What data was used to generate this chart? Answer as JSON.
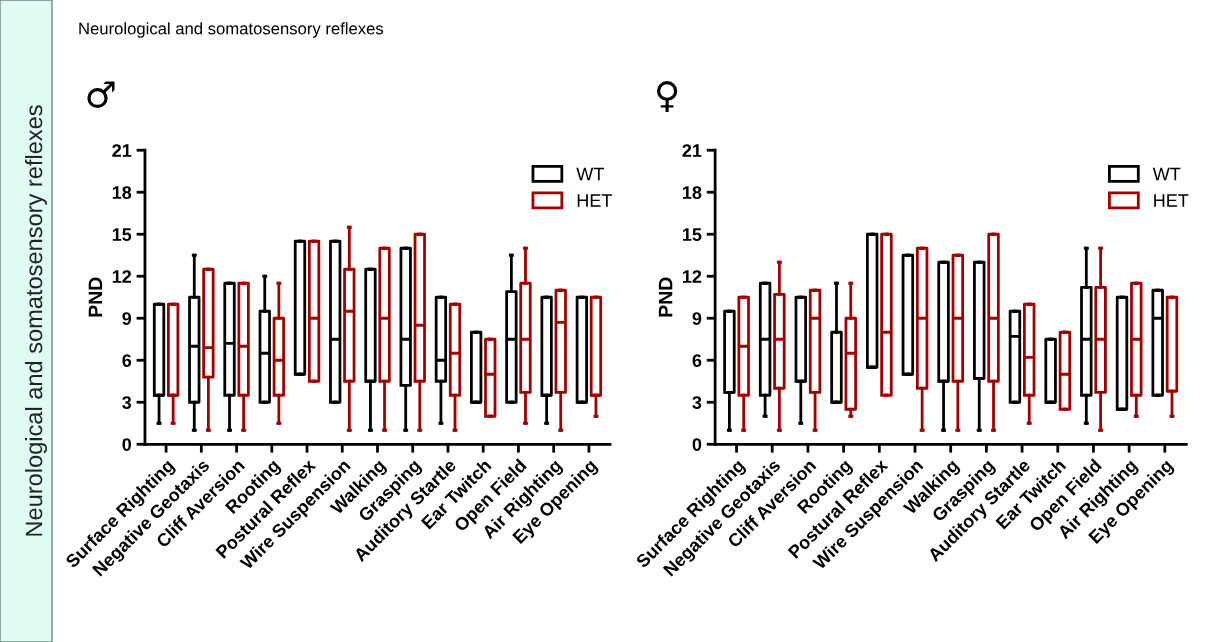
{
  "chart_data": [
    {
      "type": "box",
      "title": "♂",
      "ylabel": "PND",
      "ylim": [
        0,
        21
      ],
      "yticks": [
        0,
        3,
        6,
        9,
        12,
        15,
        18,
        21
      ],
      "grid": false,
      "legend": "top right",
      "annotations": [
        "Neurological and somatosensory reflexes",
        "Neurological and somatosensory reflexes"
      ],
      "categories": [
        "Surface Righting",
        "Negative Geotaxis",
        "Cliff Aversion",
        "Rooting",
        "Postural Reflex",
        "Wire Suspension",
        "Walking",
        "Grasping",
        "Auditory Startle",
        "Ear Twitch",
        "Open Field",
        "Air Righting",
        "Eye Opening"
      ],
      "series": [
        {
          "name": "WT",
          "color": "#000000",
          "boxes": [
            {
              "low": 1.5,
              "q1": 3.5,
              "median": 3.5,
              "q3": 10,
              "high": 10
            },
            {
              "low": 1,
              "q1": 3,
              "median": 7,
              "q3": 10.5,
              "high": 13.5
            },
            {
              "low": 1,
              "q1": 3.5,
              "median": 7.2,
              "q3": 11.5,
              "high": 11.5
            },
            {
              "low": 3,
              "q1": 3,
              "median": 6.5,
              "q3": 9.5,
              "high": 12
            },
            {
              "low": 5,
              "q1": 5,
              "median": 5,
              "q3": 14.5,
              "high": 14.5
            },
            {
              "low": 3,
              "q1": 3,
              "median": 7.5,
              "q3": 14.5,
              "high": 14.5
            },
            {
              "low": 1,
              "q1": 4.5,
              "median": 4.5,
              "q3": 12.5,
              "high": 12.5
            },
            {
              "low": 1,
              "q1": 4.2,
              "median": 7.5,
              "q3": 14,
              "high": 14
            },
            {
              "low": 1.5,
              "q1": 4.5,
              "median": 6,
              "q3": 10.5,
              "high": 10.5
            },
            {
              "low": 3,
              "q1": 3,
              "median": 3,
              "q3": 8,
              "high": 8
            },
            {
              "low": 3,
              "q1": 3,
              "median": 7.5,
              "q3": 10.9,
              "high": 13.5
            },
            {
              "low": 1.5,
              "q1": 3.5,
              "median": 3.5,
              "q3": 10.5,
              "high": 10.5
            },
            {
              "low": 3,
              "q1": 3,
              "median": 3,
              "q3": 10.5,
              "high": 10.5
            }
          ]
        },
        {
          "name": "HET",
          "color": "#a50000",
          "boxes": [
            {
              "low": 1.5,
              "q1": 3.5,
              "median": 3.5,
              "q3": 10,
              "high": 10
            },
            {
              "low": 1,
              "q1": 4.8,
              "median": 6.9,
              "q3": 12.5,
              "high": 12.5
            },
            {
              "low": 1,
              "q1": 3.5,
              "median": 7,
              "q3": 11.5,
              "high": 11.5
            },
            {
              "low": 1.5,
              "q1": 3.5,
              "median": 6,
              "q3": 9,
              "high": 11.5
            },
            {
              "low": 4.5,
              "q1": 4.5,
              "median": 9,
              "q3": 14.5,
              "high": 14.5
            },
            {
              "low": 1,
              "q1": 4.5,
              "median": 9.5,
              "q3": 12.5,
              "high": 15.5
            },
            {
              "low": 1,
              "q1": 4.5,
              "median": 9,
              "q3": 14,
              "high": 14
            },
            {
              "low": 1,
              "q1": 4.5,
              "median": 8.5,
              "q3": 15,
              "high": 15
            },
            {
              "low": 1,
              "q1": 3.5,
              "median": 6.5,
              "q3": 10,
              "high": 10
            },
            {
              "low": 2,
              "q1": 2,
              "median": 5,
              "q3": 7.5,
              "high": 7.5
            },
            {
              "low": 1.5,
              "q1": 3.7,
              "median": 7.5,
              "q3": 11.5,
              "high": 14
            },
            {
              "low": 1,
              "q1": 3.7,
              "median": 8.7,
              "q3": 11,
              "high": 11
            },
            {
              "low": 2,
              "q1": 3.5,
              "median": 3.5,
              "q3": 10.5,
              "high": 10.5
            }
          ]
        }
      ]
    },
    {
      "type": "box",
      "title": "♀",
      "ylabel": "PND",
      "ylim": [
        0,
        21
      ],
      "yticks": [
        0,
        3,
        6,
        9,
        12,
        15,
        18,
        21
      ],
      "grid": false,
      "legend": "top right",
      "categories": [
        "Surface Righting",
        "Negative Geotaxis",
        "Cliff Aversion",
        "Rooting",
        "Postural Reflex",
        "Wire Suspension",
        "Walking",
        "Grasping",
        "Auditory Startle",
        "Ear Twitch",
        "Open Field",
        "Air Righting",
        "Eye Opening"
      ],
      "series": [
        {
          "name": "WT",
          "color": "#000000",
          "boxes": [
            {
              "low": 1,
              "q1": 3.7,
              "median": 3.7,
              "q3": 9.5,
              "high": 9.5
            },
            {
              "low": 2,
              "q1": 3.5,
              "median": 7.5,
              "q3": 11.5,
              "high": 11.5
            },
            {
              "low": 1.5,
              "q1": 4.5,
              "median": 4.5,
              "q3": 10.5,
              "high": 10.5
            },
            {
              "low": 3,
              "q1": 3,
              "median": 3,
              "q3": 8,
              "high": 11.5
            },
            {
              "low": 5.5,
              "q1": 5.5,
              "median": 5.5,
              "q3": 15,
              "high": 15
            },
            {
              "low": 5,
              "q1": 5,
              "median": 5,
              "q3": 13.5,
              "high": 13.5
            },
            {
              "low": 1,
              "q1": 4.5,
              "median": 4.5,
              "q3": 13,
              "high": 13
            },
            {
              "low": 1,
              "q1": 4.7,
              "median": 4.7,
              "q3": 13,
              "high": 13
            },
            {
              "low": 3,
              "q1": 3,
              "median": 7.7,
              "q3": 9.5,
              "high": 9.5
            },
            {
              "low": 3,
              "q1": 3,
              "median": 3,
              "q3": 7.5,
              "high": 7.5
            },
            {
              "low": 1.5,
              "q1": 3.5,
              "median": 7.5,
              "q3": 11.2,
              "high": 14
            },
            {
              "low": 2.5,
              "q1": 2.5,
              "median": 2.5,
              "q3": 10.5,
              "high": 10.5
            },
            {
              "low": 3.5,
              "q1": 3.5,
              "median": 9,
              "q3": 11,
              "high": 11
            }
          ]
        },
        {
          "name": "HET",
          "color": "#a50000",
          "boxes": [
            {
              "low": 1,
              "q1": 3.5,
              "median": 7,
              "q3": 10.5,
              "high": 10.5
            },
            {
              "low": 1,
              "q1": 4,
              "median": 7.5,
              "q3": 10.7,
              "high": 13
            },
            {
              "low": 1,
              "q1": 3.7,
              "median": 9,
              "q3": 11,
              "high": 11
            },
            {
              "low": 2,
              "q1": 2.5,
              "median": 6.5,
              "q3": 9,
              "high": 11.5
            },
            {
              "low": 3.5,
              "q1": 3.5,
              "median": 8,
              "q3": 15,
              "high": 15
            },
            {
              "low": 1,
              "q1": 4,
              "median": 9,
              "q3": 14,
              "high": 14
            },
            {
              "low": 1,
              "q1": 4.5,
              "median": 9,
              "q3": 13.5,
              "high": 13.5
            },
            {
              "low": 1,
              "q1": 4.5,
              "median": 9,
              "q3": 15,
              "high": 15
            },
            {
              "low": 1.5,
              "q1": 3.5,
              "median": 6.2,
              "q3": 10,
              "high": 10
            },
            {
              "low": 2.5,
              "q1": 2.5,
              "median": 5,
              "q3": 8,
              "high": 8
            },
            {
              "low": 1,
              "q1": 3.7,
              "median": 7.5,
              "q3": 11.2,
              "high": 14
            },
            {
              "low": 2,
              "q1": 3.5,
              "median": 7.5,
              "q3": 11.5,
              "high": 11.5
            },
            {
              "low": 2,
              "q1": 3.8,
              "median": 3.8,
              "q3": 10.5,
              "high": 10.5
            }
          ]
        }
      ]
    }
  ]
}
